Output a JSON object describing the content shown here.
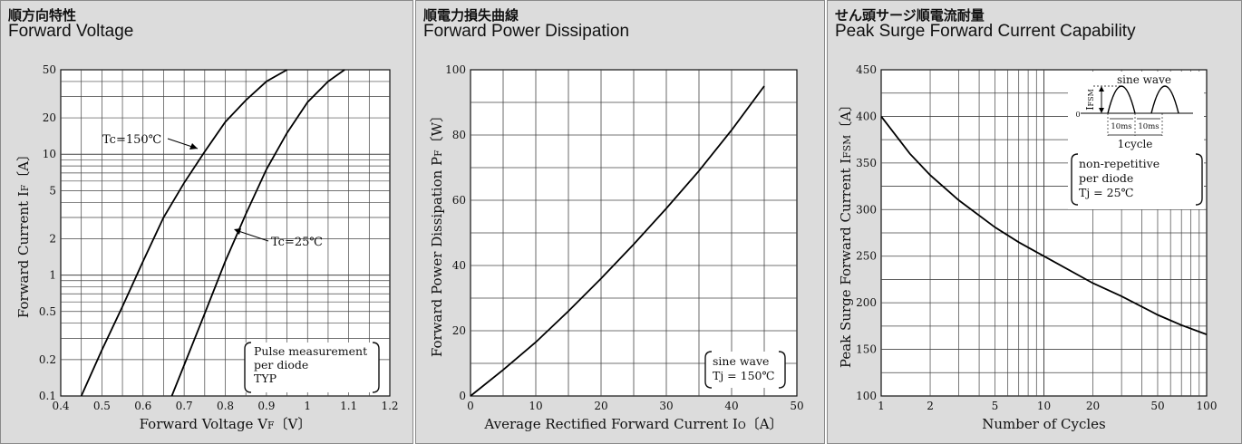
{
  "chart_data": [
    {
      "type": "line",
      "title_jp": "順方向特性",
      "title": "Forward Voltage",
      "xlabel": "Forward Voltage V",
      "xlabel_sub": "F",
      "xlabel_unit": "〔V〕",
      "ylabel": "Forward Current I",
      "ylabel_sub": "F",
      "ylabel_unit": "〔A〕",
      "xlim": [
        0.4,
        1.2
      ],
      "ylim": [
        0.1,
        50
      ],
      "yscale": "log",
      "xticks": [
        "0.4",
        "0.5",
        "0.6",
        "0.7",
        "0.8",
        "0.9",
        "1",
        "1.1",
        "1.2"
      ],
      "yticks": [
        {
          "v": 0.1,
          "label": "0.1"
        },
        {
          "v": 0.2,
          "label": "0.2"
        },
        {
          "v": 0.5,
          "label": "0.5"
        },
        {
          "v": 1,
          "label": "1"
        },
        {
          "v": 2,
          "label": "2"
        },
        {
          "v": 5,
          "label": "5"
        },
        {
          "v": 10,
          "label": "10"
        },
        {
          "v": 20,
          "label": "20"
        },
        {
          "v": 50,
          "label": "50"
        }
      ],
      "series": [
        {
          "name": "Tc=150℃",
          "x": [
            0.45,
            0.5,
            0.55,
            0.6,
            0.65,
            0.7,
            0.75,
            0.8,
            0.85,
            0.9,
            0.95
          ],
          "y": [
            0.1,
            0.24,
            0.55,
            1.3,
            3.0,
            5.8,
            10.5,
            18.5,
            28,
            40,
            50
          ]
        },
        {
          "name": "Tc=25℃",
          "x": [
            0.67,
            0.7,
            0.75,
            0.8,
            0.85,
            0.9,
            0.95,
            1.0,
            1.05,
            1.09
          ],
          "y": [
            0.1,
            0.18,
            0.48,
            1.3,
            3.2,
            7.5,
            15,
            27,
            40,
            50
          ]
        }
      ],
      "annotation": [
        "Pulse measurement",
        "per diode",
        "TYP"
      ]
    },
    {
      "type": "line",
      "title_jp": "順電力損失曲線",
      "title": "Forward Power Dissipation",
      "xlabel": "Average Rectified Forward Current I",
      "xlabel_sub": "O",
      "xlabel_unit": "〔A〕",
      "ylabel": "Forward Power Dissipation P",
      "ylabel_sub": "F",
      "ylabel_unit": "〔W〕",
      "xlim": [
        0,
        50
      ],
      "ylim": [
        0,
        100
      ],
      "xticks": [
        "0",
        "10",
        "20",
        "30",
        "40",
        "50"
      ],
      "yticks": [
        "0",
        "20",
        "40",
        "60",
        "80",
        "100"
      ],
      "series": [
        {
          "name": "",
          "x": [
            0,
            5,
            10,
            15,
            20,
            25,
            30,
            35,
            40,
            45
          ],
          "y": [
            0,
            8,
            16.5,
            26,
            36,
            46.5,
            57.5,
            69,
            81.5,
            95
          ]
        }
      ],
      "annotation": [
        "sine wave",
        "Tj = 150℃"
      ]
    },
    {
      "type": "line",
      "title_jp": "せん頭サージ順電流耐量",
      "title": "Peak Surge Forward Current Capability",
      "xlabel": "Number of Cycles",
      "ylabel": "Peak Surge Forward Current I",
      "ylabel_sub": "FSM",
      "ylabel_unit": "〔A〕",
      "xlim": [
        1,
        100
      ],
      "xscale": "log",
      "ylim": [
        100,
        450
      ],
      "xticks": [
        {
          "v": 1,
          "label": "1"
        },
        {
          "v": 2,
          "label": "2"
        },
        {
          "v": 5,
          "label": "5"
        },
        {
          "v": 10,
          "label": "10"
        },
        {
          "v": 20,
          "label": "20"
        },
        {
          "v": 50,
          "label": "50"
        },
        {
          "v": 100,
          "label": "100"
        }
      ],
      "yticks": [
        "100",
        "150",
        "200",
        "250",
        "300",
        "350",
        "400",
        "450"
      ],
      "series": [
        {
          "name": "",
          "x": [
            1,
            1.5,
            2,
            3,
            5,
            7,
            10,
            20,
            30,
            50,
            70,
            100
          ],
          "y": [
            400,
            360,
            337,
            310,
            281,
            265,
            250,
            221,
            207,
            187,
            176,
            166
          ]
        }
      ],
      "inset": {
        "label": "sine wave",
        "ifsm": "I",
        "ifsm_sub": "FSM",
        "zero": "0",
        "t1": "10ms",
        "t2": "10ms",
        "cycle": "1cycle"
      },
      "annotation": [
        "non-repetitive",
        "per diode",
        "Tj = 25℃"
      ]
    }
  ]
}
